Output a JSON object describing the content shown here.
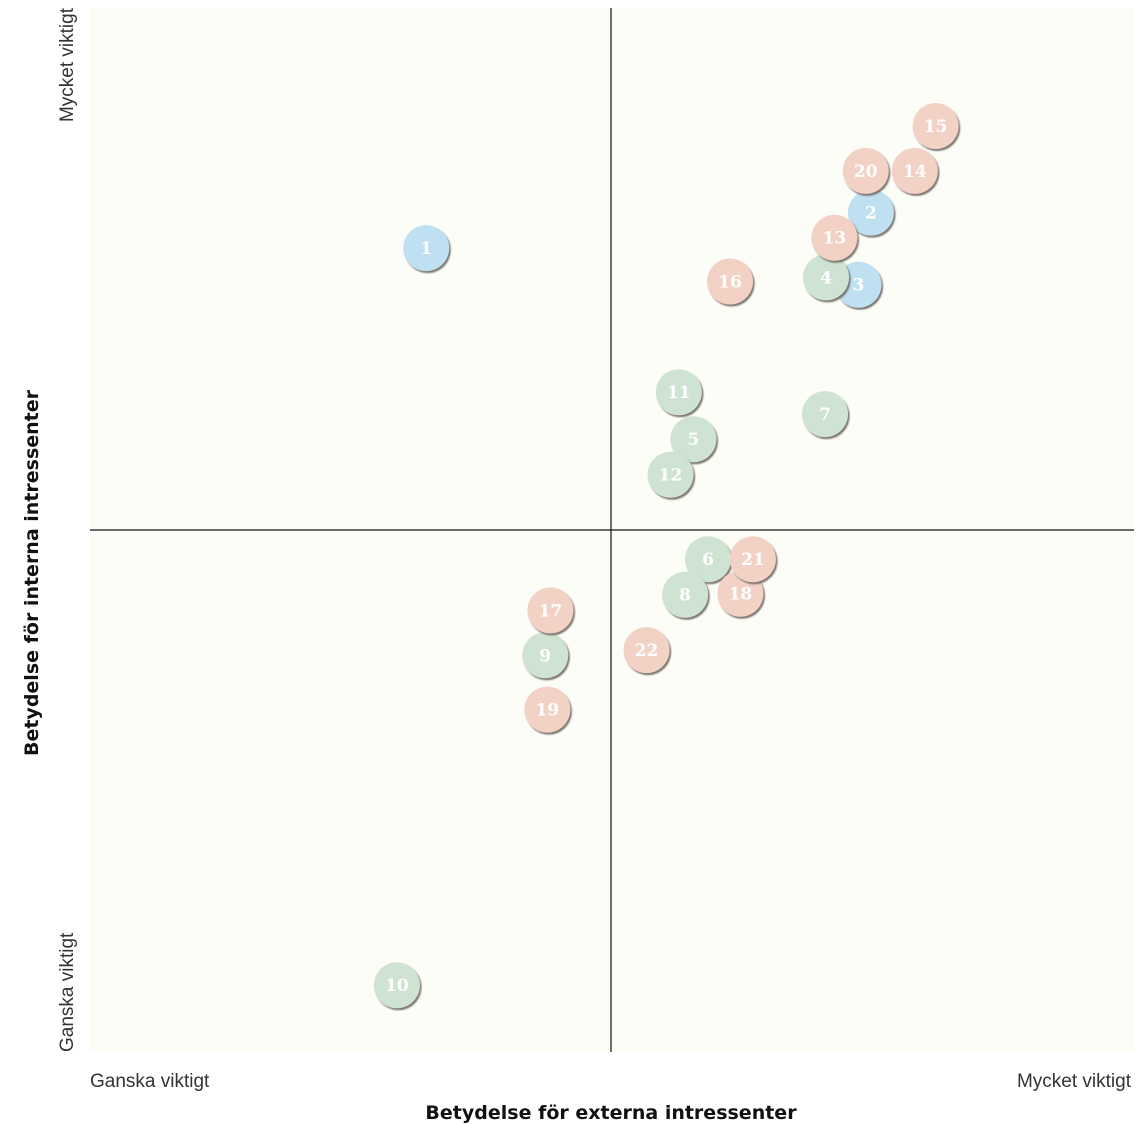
{
  "chart_data": {
    "type": "scatter",
    "xlabel": "Betydelse för externa intressenter",
    "ylabel": "Betydelse för interna intressenter",
    "x_ticks": {
      "min_label": "Ganska viktigt",
      "max_label": "Mycket viktigt"
    },
    "y_ticks": {
      "min_label": "Ganska viktigt",
      "max_label": "Mycket viktigt"
    },
    "xlim": [
      0,
      100
    ],
    "ylim": [
      0,
      100
    ],
    "grid": false,
    "colors": {
      "background": "#fdfdf8",
      "blue": "#bfe0f1",
      "green": "#cfe3d3",
      "pink": "#f3d2c6",
      "axis": "#111111"
    },
    "points": [
      {
        "id": "1",
        "x": 32.2,
        "y": 77.0,
        "group": "blue"
      },
      {
        "id": "2",
        "x": 74.8,
        "y": 80.4,
        "group": "blue"
      },
      {
        "id": "3",
        "x": 73.6,
        "y": 73.5,
        "group": "blue"
      },
      {
        "id": "4",
        "x": 70.5,
        "y": 74.2,
        "group": "green"
      },
      {
        "id": "5",
        "x": 57.8,
        "y": 58.7,
        "group": "green"
      },
      {
        "id": "6",
        "x": 59.2,
        "y": 47.2,
        "group": "green"
      },
      {
        "id": "7",
        "x": 70.4,
        "y": 61.1,
        "group": "green"
      },
      {
        "id": "8",
        "x": 57.0,
        "y": 43.8,
        "group": "green"
      },
      {
        "id": "9",
        "x": 43.6,
        "y": 38.0,
        "group": "green"
      },
      {
        "id": "10",
        "x": 29.4,
        "y": 6.4,
        "group": "green"
      },
      {
        "id": "11",
        "x": 56.4,
        "y": 63.2,
        "group": "green"
      },
      {
        "id": "12",
        "x": 55.6,
        "y": 55.3,
        "group": "green"
      },
      {
        "id": "13",
        "x": 71.3,
        "y": 78.0,
        "group": "pink"
      },
      {
        "id": "14",
        "x": 79.0,
        "y": 84.4,
        "group": "pink"
      },
      {
        "id": "15",
        "x": 81.0,
        "y": 88.7,
        "group": "pink"
      },
      {
        "id": "16",
        "x": 61.3,
        "y": 73.8,
        "group": "pink"
      },
      {
        "id": "17",
        "x": 44.1,
        "y": 42.3,
        "group": "pink"
      },
      {
        "id": "18",
        "x": 62.3,
        "y": 43.9,
        "group": "pink"
      },
      {
        "id": "19",
        "x": 43.8,
        "y": 32.8,
        "group": "pink"
      },
      {
        "id": "20",
        "x": 74.3,
        "y": 84.4,
        "group": "pink"
      },
      {
        "id": "21",
        "x": 63.5,
        "y": 47.2,
        "group": "pink"
      },
      {
        "id": "22",
        "x": 53.3,
        "y": 38.5,
        "group": "pink"
      }
    ]
  }
}
